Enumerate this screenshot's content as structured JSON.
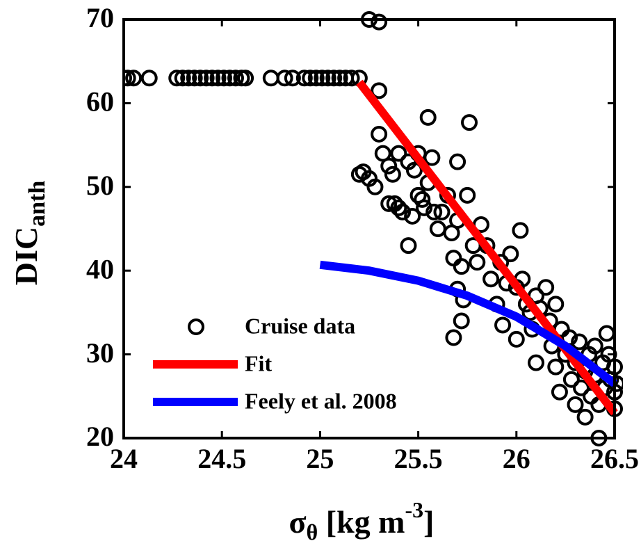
{
  "chart_data": {
    "type": "scatter",
    "x_label": {
      "parts": [
        "σ",
        "θ",
        " [kg m",
        "-3",
        "]"
      ]
    },
    "y_label": {
      "parts": [
        "DIC",
        "anth"
      ]
    },
    "xlim": [
      24,
      26.5
    ],
    "xticks": [
      24,
      24.5,
      25,
      25.5,
      26,
      26.5
    ],
    "ylim": [
      20,
      70
    ],
    "yticks": [
      20,
      30,
      40,
      50,
      60,
      70
    ],
    "legend": "lower-left",
    "series": [
      {
        "name": "Cruise data",
        "type": "scatter",
        "color": "#000000",
        "x": [
          24.0,
          24.02,
          24.05,
          24.13,
          24.27,
          24.3,
          24.33,
          24.36,
          24.39,
          24.42,
          24.45,
          24.48,
          24.51,
          24.54,
          24.57,
          24.6,
          24.62,
          24.75,
          24.82,
          24.86,
          24.92,
          24.95,
          24.98,
          25.01,
          25.04,
          25.07,
          25.1,
          25.13,
          25.16,
          25.2,
          25.25,
          25.3,
          25.3,
          25.2,
          25.22,
          25.25,
          25.28,
          25.3,
          25.32,
          25.35,
          25.37,
          25.38,
          25.4,
          25.42,
          25.4,
          25.45,
          25.47,
          25.48,
          25.5,
          25.5,
          25.52,
          25.53,
          25.55,
          25.55,
          25.57,
          25.6,
          25.45,
          25.62,
          25.65,
          25.67,
          25.68,
          25.7,
          25.7,
          25.72,
          25.7,
          25.72,
          25.68,
          25.73,
          25.75,
          25.76,
          25.78,
          25.8,
          25.82,
          25.85,
          25.87,
          25.9,
          25.92,
          25.93,
          25.95,
          25.97,
          26.0,
          26.0,
          26.02,
          26.03,
          26.05,
          26.07,
          26.08,
          26.1,
          26.1,
          26.12,
          26.15,
          26.17,
          26.18,
          26.2,
          26.2,
          26.22,
          26.23,
          26.25,
          26.27,
          26.28,
          26.3,
          26.3,
          26.32,
          26.33,
          26.35,
          26.35,
          26.37,
          26.38,
          26.4,
          26.4,
          26.42,
          26.42,
          26.44,
          26.45,
          26.46,
          26.47,
          26.48,
          26.5,
          26.5,
          26.51,
          26.5,
          25.35,
          25.58
        ],
        "values": [
          63,
          63,
          63,
          63,
          63,
          63,
          63,
          63,
          63,
          63,
          63,
          63,
          63,
          63,
          63,
          63,
          63,
          63,
          63,
          63,
          63,
          63,
          63,
          63,
          63,
          63,
          63,
          63,
          63,
          63,
          70,
          69.7,
          61.5,
          51.5,
          51.8,
          51,
          50,
          56.3,
          54,
          52.5,
          51.5,
          48,
          47.5,
          47,
          54,
          53,
          46.5,
          52,
          49,
          54,
          48.5,
          47.5,
          58.3,
          50.5,
          53.5,
          45,
          43,
          47,
          49,
          44.5,
          41.5,
          46,
          53,
          40.5,
          37.8,
          34,
          32,
          36.5,
          49,
          57.7,
          43,
          41,
          45.5,
          43,
          39,
          36,
          41,
          33.5,
          38.5,
          42,
          31.8,
          38,
          44.8,
          39,
          36,
          35,
          33,
          29,
          37,
          35.5,
          38,
          34,
          31,
          36,
          28.5,
          25.5,
          33,
          30,
          32,
          27,
          24,
          29,
          31.5,
          26,
          22.5,
          28,
          30,
          25,
          31,
          27.5,
          20,
          24,
          29,
          26,
          32.5,
          30,
          27,
          28.5,
          25.5,
          26.5,
          23.5,
          48,
          47
        ]
      },
      {
        "name": "Fit",
        "type": "line",
        "color": "#ff0000",
        "x": [
          25.2,
          26.5
        ],
        "values": [
          62.5,
          23
        ]
      },
      {
        "name": "Feely et al. 2008",
        "type": "line",
        "color": "#0000ff",
        "x": [
          25.0,
          25.25,
          25.5,
          25.75,
          26.0,
          26.25,
          26.5
        ],
        "values": [
          40.7,
          40.0,
          38.8,
          37.0,
          34.5,
          31.0,
          26.5
        ]
      }
    ]
  }
}
